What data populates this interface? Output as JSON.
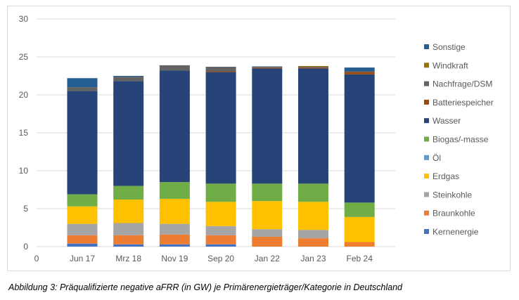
{
  "caption": "Abbildung 3: Präqualifizierte negative aFRR (in GW) je Primärenergieträger/Kategorie in Deutschland",
  "chart_data": {
    "type": "bar",
    "stacked": true,
    "title": "",
    "xlabel": "",
    "ylabel": "",
    "ylim": [
      0,
      30
    ],
    "yticks": [
      0,
      5,
      10,
      15,
      20,
      25,
      30
    ],
    "x_origin_label": "0",
    "grid": true,
    "legend_placement": "right",
    "categories": [
      "Jun 17",
      "Mrz 18",
      "Nov 19",
      "Sep 20",
      "Jan 22",
      "Jan 23",
      "Feb 24"
    ],
    "series": [
      {
        "name": "Kernenergie",
        "color": "#4472C4",
        "values": [
          0.4,
          0.3,
          0.3,
          0.3,
          0,
          0,
          0
        ]
      },
      {
        "name": "Braunkohle",
        "color": "#ED7D31",
        "values": [
          1.1,
          1.2,
          1.3,
          1.2,
          1.3,
          1.1,
          0.6
        ]
      },
      {
        "name": "Steinkohle",
        "color": "#A5A5A5",
        "values": [
          1.5,
          1.6,
          1.4,
          1.2,
          1.0,
          1.1,
          0
        ]
      },
      {
        "name": "Erdgas",
        "color": "#FFC000",
        "values": [
          2.3,
          3.1,
          3.3,
          3.2,
          3.7,
          3.7,
          3.3
        ]
      },
      {
        "name": "Öl",
        "color": "#5B9BD5",
        "values": [
          0,
          0,
          0,
          0,
          0,
          0,
          0
        ]
      },
      {
        "name": "Biogas/-masse",
        "color": "#70AD47",
        "values": [
          1.6,
          1.8,
          2.2,
          2.4,
          2.3,
          2.4,
          1.9
        ]
      },
      {
        "name": "Wasser",
        "color": "#264478",
        "values": [
          13.6,
          13.8,
          14.7,
          14.7,
          15.2,
          15.2,
          16.9
        ]
      },
      {
        "name": "Batteriespeicher",
        "color": "#9E480E",
        "values": [
          0,
          0,
          0,
          0.1,
          0.1,
          0.1,
          0.3
        ]
      },
      {
        "name": "Nachfrage/DSM",
        "color": "#636363",
        "values": [
          0.5,
          0.6,
          0.7,
          0.6,
          0.1,
          0.1,
          0.1
        ]
      },
      {
        "name": "Windkraft",
        "color": "#997300",
        "values": [
          0,
          0,
          0,
          0,
          0,
          0.1,
          0
        ]
      },
      {
        "name": "Sonstige",
        "color": "#255E91",
        "values": [
          1.2,
          0.1,
          0,
          0,
          0.05,
          0,
          0.5
        ]
      }
    ]
  }
}
